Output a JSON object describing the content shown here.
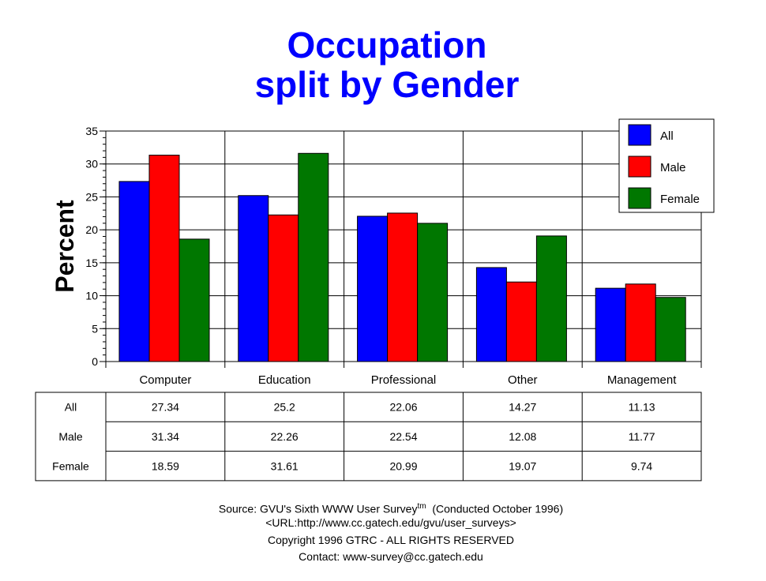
{
  "chart_data": {
    "type": "bar",
    "title": "Occupation",
    "subtitle": "split by Gender",
    "xlabel": "",
    "ylabel": "Percent",
    "ylim": [
      0,
      35
    ],
    "yticks": [
      0,
      5,
      10,
      15,
      20,
      25,
      30,
      35
    ],
    "grid": true,
    "legend_position": "top-right",
    "categories": [
      "Computer",
      "Education",
      "Professional",
      "Other",
      "Management"
    ],
    "series": [
      {
        "name": "All",
        "color": "#0000ff",
        "values": [
          27.34,
          25.2,
          22.06,
          14.27,
          11.13
        ],
        "labels": [
          "27.34",
          "25.2",
          "22.06",
          "14.27",
          "11.13"
        ]
      },
      {
        "name": "Male",
        "color": "#ff0000",
        "values": [
          31.34,
          22.26,
          22.54,
          12.08,
          11.77
        ],
        "labels": [
          "31.34",
          "22.26",
          "22.54",
          "12.08",
          "11.77"
        ]
      },
      {
        "name": "Female",
        "color": "#007700",
        "values": [
          18.59,
          31.61,
          20.99,
          19.07,
          9.74
        ],
        "labels": [
          "18.59",
          "31.61",
          "20.99",
          "19.07",
          "9.74"
        ]
      }
    ]
  },
  "footer": {
    "source_prefix": "Source: GVU's Sixth WWW User Survey",
    "tm": "tm",
    "source_suffix": "  (Conducted October 1996)",
    "url": "<URL:http://www.cc.gatech.edu/gvu/user_surveys>",
    "copyright": "Copyright 1996 GTRC -  ALL RIGHTS RESERVED",
    "contact": "Contact: www-survey@cc.gatech.edu"
  }
}
